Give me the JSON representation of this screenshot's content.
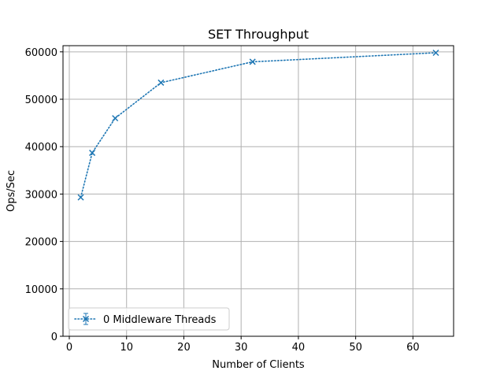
{
  "chart_data": {
    "type": "line",
    "title": "SET Throughput",
    "xlabel": "Number of Clients",
    "ylabel": "Ops/Sec",
    "xlim": [
      -1.1,
      67.1
    ],
    "ylim": [
      0,
      61300
    ],
    "xticks": [
      0,
      10,
      20,
      30,
      40,
      50,
      60
    ],
    "yticks": [
      0,
      10000,
      20000,
      30000,
      40000,
      50000,
      60000
    ],
    "grid": true,
    "legend_position": "lower-left",
    "series": [
      {
        "name": "0 Middleware Threads",
        "color": "#1f77b4",
        "line_style": "dotted",
        "marker": "x",
        "error_bars": true,
        "x": [
          2,
          4,
          8,
          16,
          32,
          64
        ],
        "y": [
          29300,
          38700,
          46000,
          53500,
          57900,
          59800
        ]
      }
    ]
  }
}
